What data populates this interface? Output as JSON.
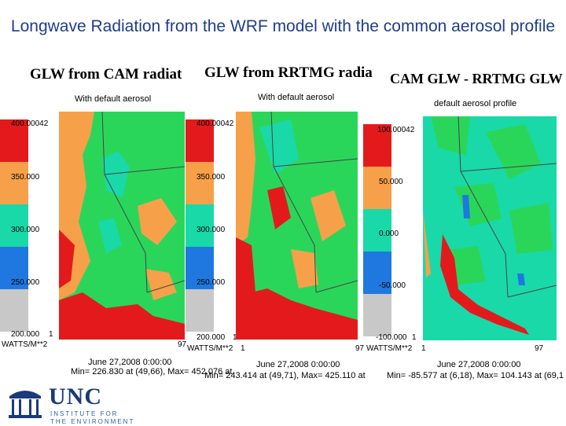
{
  "title": "Longwave Radiation from the WRF model with the common aerosol profile",
  "panels": [
    {
      "heading": "GLW from CAM radiat",
      "subtitle": "With default aerosol",
      "scale_top": "400.00042",
      "ticks": [
        "350.000",
        "300.000",
        "250.000"
      ],
      "scale_bottom": "200.000",
      "units": "WATTS/M**2",
      "grid_start": "1",
      "grid_end": "97",
      "datetime": "June 27,2008 0:00:00",
      "minmax": "Min= 226.830 at (49,66), Max= 452.076 at"
    },
    {
      "heading": "GLW from RRTMG radia",
      "subtitle": "With default aerosol",
      "scale_top": "400.00042",
      "ticks": [
        "350.000",
        "300.000",
        "250.000"
      ],
      "scale_bottom": "200.000",
      "units": "WATTS/M**2",
      "grid_start": "1",
      "grid_end": "97",
      "datetime": "June 27,2008 0:00:00",
      "minmax": "Min= 243.414 at (49,71), Max= 425.110 at"
    },
    {
      "heading": "CAM GLW - RRTMG GLW",
      "subtitle": "default aerosol profile",
      "scale_top": "100.00042",
      "ticks": [
        "50.000",
        "0.000",
        "-50.000"
      ],
      "scale_bottom": "-100.000",
      "units": "WATTS/M**2",
      "grid_start": "1",
      "grid_end": "97",
      "datetime": "June 27,2008 0:00:00",
      "minmax": "Min= -85.577 at (6,18), Max= 104.143 at (69,1"
    }
  ],
  "colorbar_colors": [
    "#e31a1c",
    "#f7a04a",
    "#19d9a8",
    "#1f78e0",
    "#c8c8c8"
  ],
  "logo": {
    "name": "UNC",
    "line1": "INSTITUTE FOR",
    "line2": "THE ENVIRONMENT"
  }
}
